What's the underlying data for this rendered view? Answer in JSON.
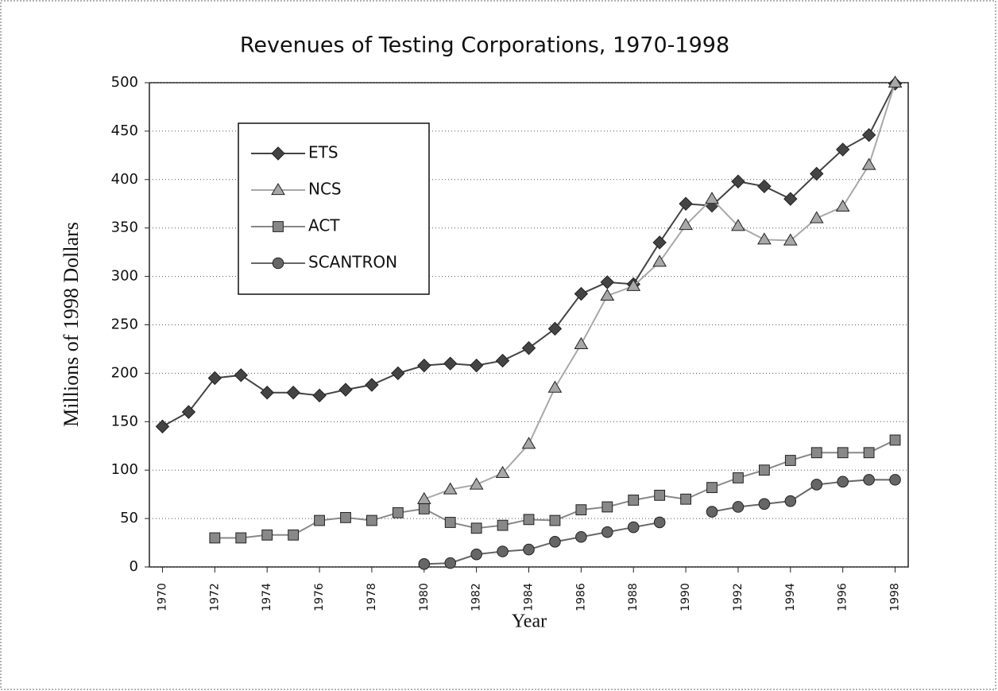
{
  "chart_data": {
    "type": "line",
    "title": "Revenues of Testing Corporations, 1970-1998",
    "y_label": "Millions of 1998 Dollars",
    "x_label": "Year",
    "x": [
      1970,
      1971,
      1972,
      1973,
      1974,
      1975,
      1976,
      1977,
      1978,
      1979,
      1980,
      1981,
      1982,
      1983,
      1984,
      1985,
      1986,
      1987,
      1988,
      1989,
      1990,
      1991,
      1992,
      1993,
      1994,
      1995,
      1996,
      1997,
      1998
    ],
    "xlim": [
      1969.5,
      1998.5
    ],
    "xticks": [
      1970,
      1972,
      1974,
      1976,
      1978,
      1980,
      1982,
      1984,
      1986,
      1988,
      1990,
      1992,
      1994,
      1996,
      1998
    ],
    "ylim": [
      0,
      500
    ],
    "yticks": [
      0,
      50,
      100,
      150,
      200,
      250,
      300,
      350,
      400,
      450,
      500
    ],
    "grid": true,
    "legend": "upper left",
    "series": [
      {
        "name": "ETS",
        "color": "#444444",
        "marker": "diamond",
        "values": [
          145,
          160,
          195,
          198,
          180,
          180,
          177,
          183,
          188,
          200,
          208,
          210,
          208,
          213,
          226,
          246,
          282,
          294,
          292,
          335,
          375,
          373,
          398,
          393,
          380,
          406,
          431,
          446,
          499
        ]
      },
      {
        "name": "NCS",
        "color": "#a8a8a8",
        "marker": "triangle",
        "values": [
          null,
          null,
          null,
          null,
          null,
          null,
          null,
          null,
          null,
          null,
          70,
          80,
          85,
          97,
          127,
          185,
          230,
          280,
          290,
          315,
          353,
          380,
          352,
          338,
          337,
          360,
          372,
          415,
          500
        ]
      },
      {
        "name": "ACT",
        "color": "#888888",
        "marker": "square",
        "values": [
          null,
          null,
          30,
          30,
          33,
          33,
          48,
          51,
          48,
          56,
          60,
          46,
          40,
          43,
          49,
          48,
          59,
          62,
          69,
          74,
          70,
          82,
          92,
          100,
          110,
          118,
          118,
          118,
          131
        ]
      },
      {
        "name": "SCANTRON",
        "color": "#666666",
        "marker": "circle",
        "values": [
          null,
          null,
          null,
          null,
          null,
          null,
          null,
          null,
          null,
          null,
          3,
          4,
          13,
          16,
          18,
          26,
          31,
          36,
          41,
          46,
          null,
          57,
          62,
          65,
          68,
          85,
          88,
          90,
          90
        ]
      }
    ]
  }
}
